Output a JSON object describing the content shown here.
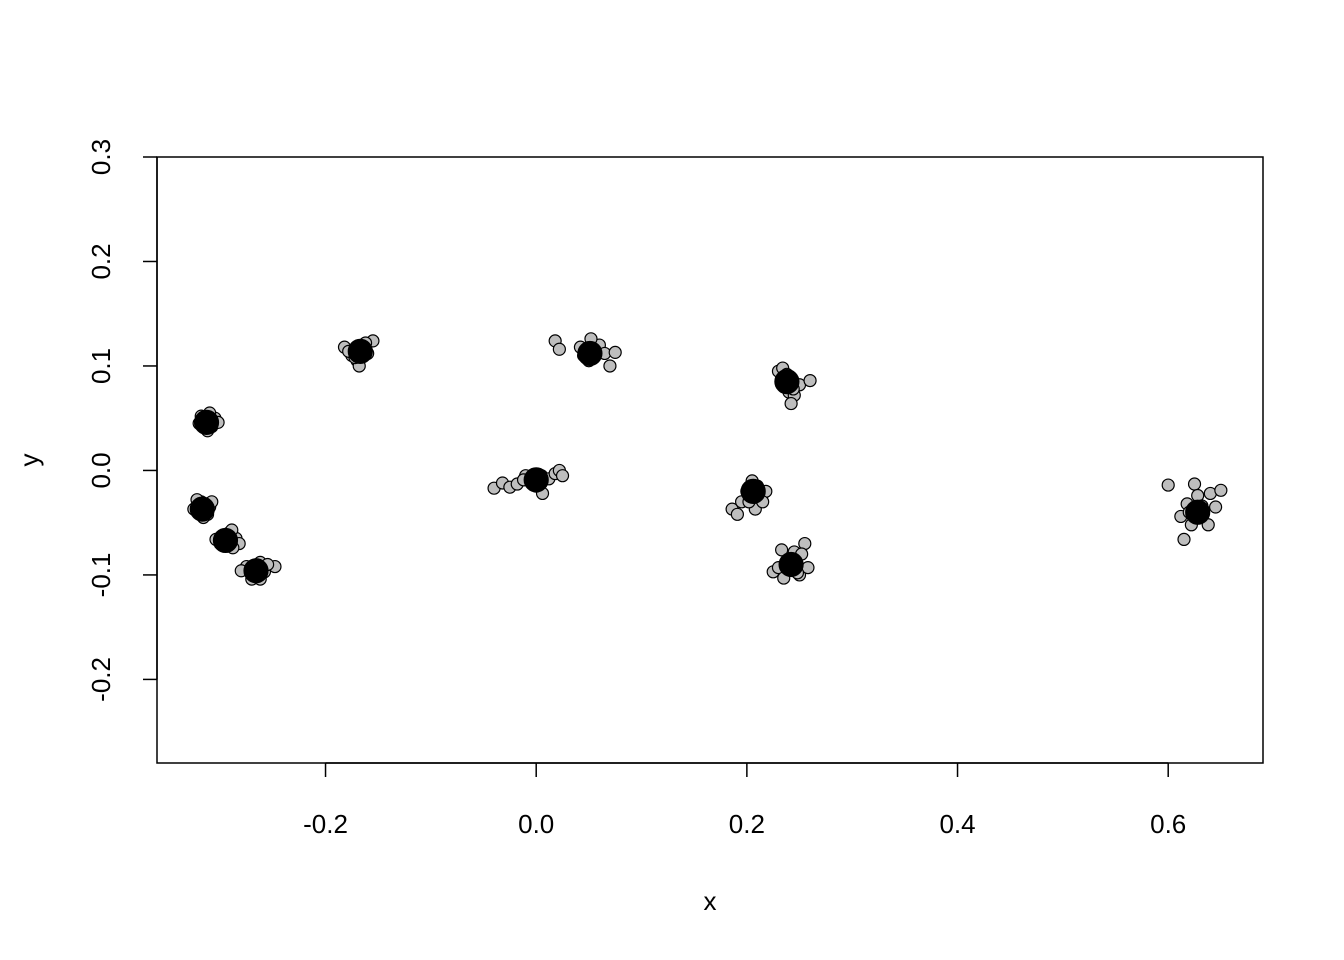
{
  "chart_data": {
    "type": "scatter",
    "xlabel": "x",
    "ylabel": "y",
    "xlim": [
      -0.36,
      0.69
    ],
    "ylim": [
      -0.28,
      0.3
    ],
    "x_ticks": [
      -0.2,
      0.0,
      0.2,
      0.4,
      0.6
    ],
    "x_tick_labels": [
      "-0.2",
      "0.0",
      "0.2",
      "0.4",
      "0.6"
    ],
    "y_ticks": [
      -0.2,
      -0.1,
      0.0,
      0.1,
      0.2,
      0.3
    ],
    "y_tick_labels": [
      "-0.2",
      "-0.1",
      "0.0",
      "0.1",
      "0.2",
      "0.3"
    ],
    "grid": false,
    "legend": "none",
    "point_fill": "#bebebe",
    "center_fill": "#000000",
    "point_stroke": "#000000",
    "series": [
      {
        "role": "samples",
        "points": [
          [
            -0.325,
            -0.037
          ],
          [
            -0.318,
            -0.03
          ],
          [
            -0.312,
            -0.042
          ],
          [
            -0.322,
            -0.028
          ],
          [
            -0.31,
            -0.035
          ],
          [
            -0.316,
            -0.045
          ],
          [
            -0.308,
            -0.03
          ],
          [
            -0.32,
            -0.04
          ],
          [
            -0.3,
            -0.07
          ],
          [
            -0.292,
            -0.06
          ],
          [
            -0.285,
            -0.065
          ],
          [
            -0.296,
            -0.072
          ],
          [
            -0.289,
            -0.057
          ],
          [
            -0.304,
            -0.066
          ],
          [
            -0.282,
            -0.07
          ],
          [
            -0.288,
            -0.074
          ],
          [
            -0.275,
            -0.092
          ],
          [
            -0.268,
            -0.1
          ],
          [
            -0.262,
            -0.088
          ],
          [
            -0.258,
            -0.097
          ],
          [
            -0.248,
            -0.092
          ],
          [
            -0.27,
            -0.104
          ],
          [
            -0.262,
            -0.104
          ],
          [
            -0.28,
            -0.096
          ],
          [
            -0.255,
            -0.09
          ],
          [
            -0.32,
            0.045
          ],
          [
            -0.315,
            0.05
          ],
          [
            -0.308,
            0.042
          ],
          [
            -0.312,
            0.038
          ],
          [
            -0.305,
            0.05
          ],
          [
            -0.318,
            0.052
          ],
          [
            -0.302,
            0.046
          ],
          [
            -0.31,
            0.055
          ],
          [
            -0.182,
            0.118
          ],
          [
            -0.175,
            0.11
          ],
          [
            -0.17,
            0.105
          ],
          [
            -0.165,
            0.118
          ],
          [
            -0.16,
            0.112
          ],
          [
            -0.155,
            0.124
          ],
          [
            -0.168,
            0.1
          ],
          [
            -0.178,
            0.114
          ],
          [
            -0.162,
            0.122
          ],
          [
            -0.172,
            0.108
          ],
          [
            -0.04,
            -0.017
          ],
          [
            -0.032,
            -0.012
          ],
          [
            -0.025,
            -0.016
          ],
          [
            -0.018,
            -0.013
          ],
          [
            -0.01,
            -0.005
          ],
          [
            -0.005,
            -0.01
          ],
          [
            0.005,
            -0.005
          ],
          [
            0.012,
            -0.008
          ],
          [
            0.018,
            -0.003
          ],
          [
            0.022,
            0.0
          ],
          [
            0.025,
            -0.005
          ],
          [
            0.006,
            -0.022
          ],
          [
            0.0,
            -0.015
          ],
          [
            -0.012,
            -0.009
          ],
          [
            0.018,
            0.124
          ],
          [
            0.022,
            0.116
          ],
          [
            0.045,
            0.11
          ],
          [
            0.05,
            0.105
          ],
          [
            0.055,
            0.115
          ],
          [
            0.06,
            0.12
          ],
          [
            0.065,
            0.112
          ],
          [
            0.07,
            0.1
          ],
          [
            0.075,
            0.113
          ],
          [
            0.052,
            0.126
          ],
          [
            0.042,
            0.118
          ],
          [
            0.186,
            -0.037
          ],
          [
            0.191,
            -0.042
          ],
          [
            0.195,
            -0.03
          ],
          [
            0.2,
            -0.02
          ],
          [
            0.205,
            -0.01
          ],
          [
            0.21,
            -0.015
          ],
          [
            0.214,
            -0.025
          ],
          [
            0.218,
            -0.02
          ],
          [
            0.208,
            -0.037
          ],
          [
            0.215,
            -0.03
          ],
          [
            0.202,
            -0.03
          ],
          [
            0.225,
            -0.097
          ],
          [
            0.23,
            -0.093
          ],
          [
            0.235,
            -0.103
          ],
          [
            0.24,
            -0.085
          ],
          [
            0.245,
            -0.078
          ],
          [
            0.25,
            -0.1
          ],
          [
            0.255,
            -0.07
          ],
          [
            0.258,
            -0.093
          ],
          [
            0.233,
            -0.076
          ],
          [
            0.248,
            -0.098
          ],
          [
            0.238,
            -0.092
          ],
          [
            0.252,
            -0.08
          ],
          [
            0.23,
            0.095
          ],
          [
            0.235,
            0.08
          ],
          [
            0.24,
            0.075
          ],
          [
            0.245,
            0.072
          ],
          [
            0.242,
            0.064
          ],
          [
            0.25,
            0.082
          ],
          [
            0.26,
            0.086
          ],
          [
            0.234,
            0.098
          ],
          [
            0.238,
            0.092
          ],
          [
            0.244,
            0.078
          ],
          [
            0.6,
            -0.014
          ],
          [
            0.612,
            -0.044
          ],
          [
            0.615,
            -0.066
          ],
          [
            0.618,
            -0.032
          ],
          [
            0.622,
            -0.052
          ],
          [
            0.625,
            -0.013
          ],
          [
            0.628,
            -0.024
          ],
          [
            0.632,
            -0.034
          ],
          [
            0.638,
            -0.052
          ],
          [
            0.64,
            -0.022
          ],
          [
            0.645,
            -0.035
          ],
          [
            0.65,
            -0.019
          ],
          [
            0.62,
            -0.04
          ]
        ]
      },
      {
        "role": "centers",
        "points": [
          [
            -0.317,
            -0.037
          ],
          [
            -0.295,
            -0.067
          ],
          [
            -0.266,
            -0.096
          ],
          [
            -0.313,
            0.046
          ],
          [
            -0.167,
            0.114
          ],
          [
            0.0,
            -0.009
          ],
          [
            0.051,
            0.112
          ],
          [
            0.206,
            -0.02
          ],
          [
            0.242,
            -0.09
          ],
          [
            0.238,
            0.085
          ],
          [
            0.628,
            -0.04
          ]
        ]
      }
    ]
  }
}
